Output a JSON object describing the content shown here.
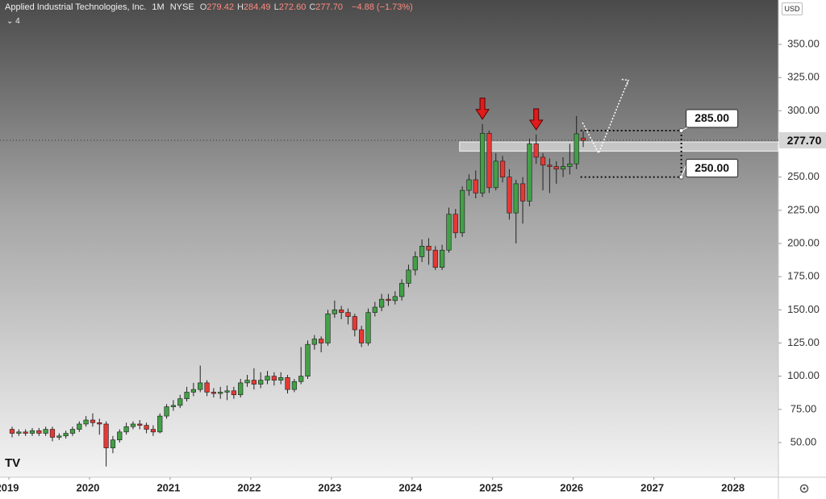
{
  "chart_data": {
    "type": "candlestick",
    "title": "Applied Industrial Technologies, Inc.",
    "interval": "1M",
    "exchange": "NYSE",
    "ohlc_text": [
      {
        "key": "O",
        "value": "279.42"
      },
      {
        "key": "H",
        "value": "284.49"
      },
      {
        "key": "L",
        "value": "272.60"
      },
      {
        "key": "C",
        "value": "277.70"
      }
    ],
    "change_text": "−4.88 (−1.73%)",
    "indicators": "4",
    "currency": "USD",
    "up_color": "#43a047",
    "down_color": "#e53935",
    "open": [
      60,
      57,
      58,
      57,
      59,
      57,
      60,
      54,
      55,
      57,
      60,
      64,
      67,
      65,
      64,
      46,
      52,
      58,
      62,
      64,
      63,
      60,
      58,
      70,
      77,
      78,
      83,
      88,
      90,
      95,
      88,
      87,
      88,
      89,
      86,
      95,
      97,
      94,
      97,
      100,
      97,
      99,
      90,
      96,
      100,
      124,
      128,
      125,
      147,
      150,
      148,
      145,
      135,
      125,
      148,
      152,
      158,
      157,
      160,
      170,
      180,
      190,
      198,
      195,
      182,
      195,
      222,
      208,
      240,
      248,
      238,
      283,
      242,
      262,
      250,
      223,
      245,
      232,
      275,
      265,
      259,
      258,
      256,
      258,
      260,
      279.42
    ],
    "high": [
      62,
      60,
      60,
      61,
      61,
      62,
      62,
      57,
      59,
      62,
      66,
      70,
      72,
      68,
      66,
      55,
      60,
      65,
      66,
      67,
      65,
      63,
      72,
      79,
      82,
      86,
      92,
      95,
      108,
      97,
      91,
      92,
      93,
      92,
      98,
      101,
      106,
      103,
      104,
      103,
      103,
      101,
      98,
      122,
      127,
      131,
      130,
      150,
      157,
      153,
      151,
      147,
      138,
      151,
      156,
      162,
      162,
      164,
      173,
      184,
      194,
      203,
      204,
      198,
      199,
      227,
      226,
      243,
      252,
      255,
      290,
      285,
      268,
      266,
      256,
      248,
      250,
      279,
      282,
      268,
      264,
      262,
      265,
      275,
      296,
      284.49
    ],
    "low": [
      54,
      55,
      55,
      55,
      55,
      55,
      51,
      52,
      53,
      55,
      58,
      62,
      62,
      56,
      32,
      42,
      50,
      56,
      60,
      60,
      57,
      55,
      57,
      68,
      74,
      76,
      81,
      85,
      88,
      85,
      84,
      83,
      82,
      83,
      84,
      92,
      90,
      91,
      94,
      93,
      94,
      87,
      88,
      94,
      98,
      120,
      118,
      123,
      144,
      143,
      139,
      130,
      122,
      123,
      145,
      149,
      153,
      154,
      157,
      167,
      176,
      186,
      184,
      180,
      180,
      193,
      204,
      205,
      236,
      234,
      235,
      238,
      240,
      246,
      218,
      200,
      215,
      228,
      260,
      240,
      238,
      245,
      250,
      252,
      256,
      272.6
    ],
    "close": [
      57,
      58,
      57,
      59,
      57,
      60,
      54,
      55,
      57,
      60,
      64,
      67,
      65,
      64,
      46,
      52,
      58,
      62,
      64,
      63,
      60,
      58,
      70,
      77,
      78,
      83,
      88,
      90,
      95,
      88,
      87,
      88,
      89,
      86,
      95,
      97,
      94,
      97,
      100,
      97,
      99,
      90,
      96,
      100,
      124,
      128,
      125,
      147,
      150,
      148,
      145,
      135,
      125,
      148,
      152,
      158,
      157,
      160,
      170,
      180,
      190,
      198,
      195,
      182,
      195,
      222,
      208,
      240,
      248,
      238,
      283,
      242,
      262,
      250,
      223,
      245,
      232,
      275,
      265,
      259,
      258,
      256,
      258,
      260,
      282.58,
      277.7
    ],
    "xlim": [
      -1.8,
      114.05
    ],
    "xticks": [
      {
        "value": 0,
        "label": "2019"
      },
      {
        "value": 12,
        "label": "2020"
      },
      {
        "value": 24,
        "label": "2021"
      },
      {
        "value": 36,
        "label": "2022"
      },
      {
        "value": 48,
        "label": "2023"
      },
      {
        "value": 60,
        "label": "2024"
      },
      {
        "value": 72,
        "label": "2025"
      },
      {
        "value": 84,
        "label": "2026"
      },
      {
        "value": 96,
        "label": "2027"
      },
      {
        "value": 108,
        "label": "2028"
      }
    ],
    "ylim": [
      23.9,
      383.4
    ],
    "yticks": [
      {
        "value": 50,
        "label": "50.00"
      },
      {
        "value": 75,
        "label": "75.00"
      },
      {
        "value": 100,
        "label": "100.00"
      },
      {
        "value": 125,
        "label": "125.00"
      },
      {
        "value": 150,
        "label": "150.00"
      },
      {
        "value": 175,
        "label": "175.00"
      },
      {
        "value": 200,
        "label": "200.00"
      },
      {
        "value": 225,
        "label": "225.00"
      },
      {
        "value": 250,
        "label": "250.00"
      },
      {
        "value": 275,
        "label": "275.00"
      },
      {
        "value": 300,
        "label": "300.00"
      },
      {
        "value": 325,
        "label": "325.00"
      },
      {
        "value": 350,
        "label": "350.00"
      }
    ],
    "last_price": {
      "value": 277.7,
      "label": "277.70"
    },
    "zone": {
      "from": 66.6,
      "low": 269.5,
      "high": 276.5
    },
    "levels": [
      {
        "value": 285,
        "label": "285.00"
      },
      {
        "value": 250,
        "label": "250.00"
      }
    ],
    "level_box": [
      84.6,
      99.6
    ],
    "signal_arrows": [
      70,
      78
    ],
    "projection": {
      "x": [
        84.9,
        87.3,
        91.7
      ],
      "y": [
        291,
        268,
        323
      ]
    }
  }
}
